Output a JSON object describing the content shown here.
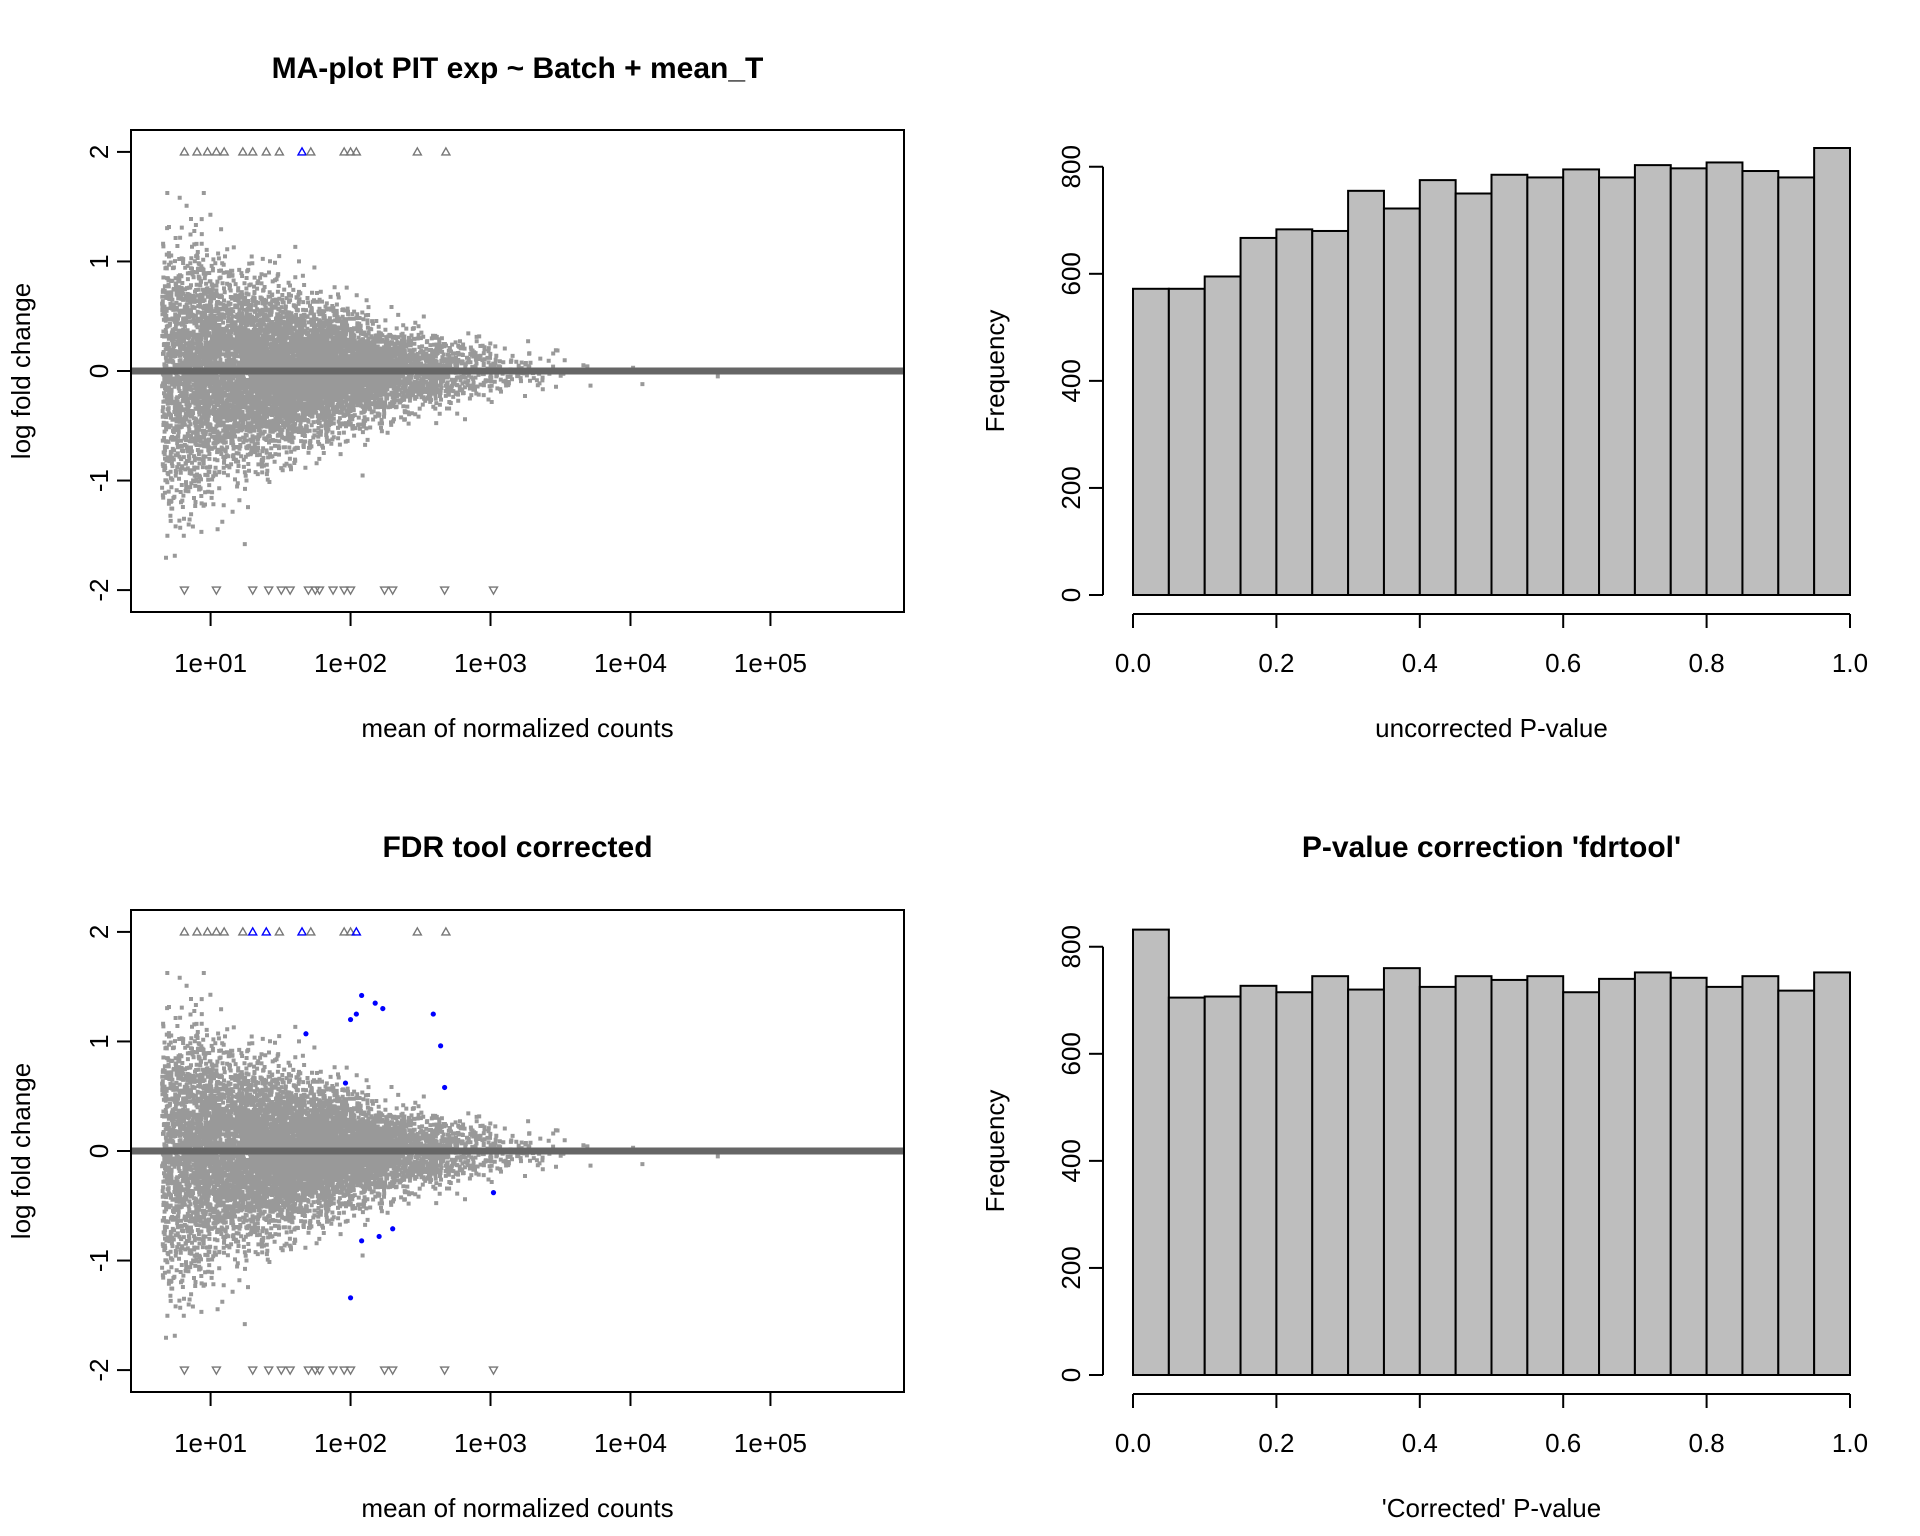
{
  "chart_data": [
    {
      "type": "scatter",
      "title": "MA-plot PIT exp ~ Batch + mean_T",
      "xlabel": "mean of normalized counts",
      "ylabel": "log fold change",
      "x_scale": "log10",
      "xlim": [
        2.7,
        900000
      ],
      "ylim": [
        -2.2,
        2.2
      ],
      "x_ticks": [
        10,
        100,
        1000,
        10000,
        100000
      ],
      "x_tick_labels": [
        "1e+01",
        "1e+02",
        "1e+03",
        "1e+04",
        "1e+05"
      ],
      "y_ticks": [
        -2,
        -1,
        0,
        1,
        2
      ],
      "y_tick_labels": [
        "-2",
        "-1",
        "0",
        "1",
        "2"
      ],
      "hline": 0,
      "colors": {
        "points": "#999999",
        "significant": "#0000ff",
        "hline": "#666666"
      },
      "cloud": {
        "n_points": 9000,
        "x_min": 4.5,
        "x_max": 400000,
        "seed": 11
      },
      "outliers_top": [
        6.5,
        8,
        9.5,
        11,
        12.5,
        17,
        20,
        25,
        31,
        45,
        52,
        90,
        100,
        110,
        300,
        480
      ],
      "outliers_bottom": [
        6.5,
        11,
        20,
        26,
        32,
        37,
        50,
        56,
        60,
        75,
        90,
        100,
        175,
        200,
        470,
        1050
      ],
      "significant_top": [
        45
      ],
      "significant_points": []
    },
    {
      "type": "bar",
      "title": "",
      "xlabel": "uncorrected P-value",
      "ylabel": "Frequency",
      "bin_edges": [
        0,
        0.05,
        0.1,
        0.15,
        0.2,
        0.25,
        0.3,
        0.35,
        0.4,
        0.45,
        0.5,
        0.55,
        0.6,
        0.65,
        0.7,
        0.75,
        0.8,
        0.85,
        0.9,
        0.95,
        1.0
      ],
      "values": [
        572,
        572,
        595,
        667,
        683,
        680,
        755,
        722,
        775,
        750,
        785,
        780,
        795,
        780,
        803,
        797,
        808,
        792,
        780,
        835
      ],
      "xlim": [
        0,
        1
      ],
      "ylim": [
        0,
        835
      ],
      "x_ticks": [
        0,
        0.2,
        0.4,
        0.6,
        0.8,
        1.0
      ],
      "x_tick_labels": [
        "0.0",
        "0.2",
        "0.4",
        "0.6",
        "0.8",
        "1.0"
      ],
      "y_ticks": [
        0,
        200,
        400,
        600,
        800
      ],
      "y_tick_labels": [
        "0",
        "200",
        "400",
        "600",
        "800"
      ],
      "colors": {
        "bars": "#bebebe"
      }
    },
    {
      "type": "scatter",
      "title": "FDR tool corrected",
      "xlabel": "mean of normalized counts",
      "ylabel": "log fold change",
      "x_scale": "log10",
      "xlim": [
        2.7,
        900000
      ],
      "ylim": [
        -2.2,
        2.2
      ],
      "x_ticks": [
        10,
        100,
        1000,
        10000,
        100000
      ],
      "x_tick_labels": [
        "1e+01",
        "1e+02",
        "1e+03",
        "1e+04",
        "1e+05"
      ],
      "y_ticks": [
        -2,
        -1,
        0,
        1,
        2
      ],
      "y_tick_labels": [
        "-2",
        "-1",
        "0",
        "1",
        "2"
      ],
      "hline": 0,
      "colors": {
        "points": "#999999",
        "significant": "#0000ff",
        "hline": "#666666"
      },
      "cloud": {
        "n_points": 9000,
        "x_min": 4.5,
        "x_max": 400000,
        "seed": 11
      },
      "outliers_top": [
        6.5,
        8,
        9.5,
        11,
        12.5,
        17,
        20,
        25,
        31,
        45,
        52,
        90,
        100,
        110,
        300,
        480
      ],
      "outliers_bottom": [
        6.5,
        11,
        20,
        26,
        32,
        37,
        50,
        56,
        60,
        75,
        90,
        100,
        175,
        200,
        470,
        1050
      ],
      "significant_top": [
        20,
        25,
        45,
        110,
        115
      ],
      "significant_points": [
        [
          48,
          1.07
        ],
        [
          92,
          0.62
        ],
        [
          100,
          1.2
        ],
        [
          110,
          1.25
        ],
        [
          120,
          1.42
        ],
        [
          150,
          1.35
        ],
        [
          170,
          1.3
        ],
        [
          390,
          1.25
        ],
        [
          440,
          0.96
        ],
        [
          470,
          0.58
        ],
        [
          100,
          -1.34
        ],
        [
          120,
          -0.82
        ],
        [
          160,
          -0.78
        ],
        [
          200,
          -0.71
        ],
        [
          1050,
          -0.38
        ]
      ]
    },
    {
      "type": "bar",
      "title": "P-value correction 'fdrtool'",
      "xlabel": "'Corrected' P-value",
      "ylabel": "Frequency",
      "bin_edges": [
        0,
        0.05,
        0.1,
        0.15,
        0.2,
        0.25,
        0.3,
        0.35,
        0.4,
        0.45,
        0.5,
        0.55,
        0.6,
        0.65,
        0.7,
        0.75,
        0.8,
        0.85,
        0.9,
        0.95,
        1.0
      ],
      "values": [
        832,
        705,
        707,
        727,
        715,
        745,
        720,
        760,
        725,
        745,
        738,
        745,
        715,
        740,
        752,
        742,
        725,
        745,
        718,
        752
      ],
      "xlim": [
        0,
        1
      ],
      "ylim": [
        0,
        835
      ],
      "x_ticks": [
        0,
        0.2,
        0.4,
        0.6,
        0.8,
        1.0
      ],
      "x_tick_labels": [
        "0.0",
        "0.2",
        "0.4",
        "0.6",
        "0.8",
        "1.0"
      ],
      "y_ticks": [
        0,
        200,
        400,
        600,
        800
      ],
      "y_tick_labels": [
        "0",
        "200",
        "400",
        "600",
        "800"
      ],
      "colors": {
        "bars": "#bebebe"
      }
    }
  ]
}
